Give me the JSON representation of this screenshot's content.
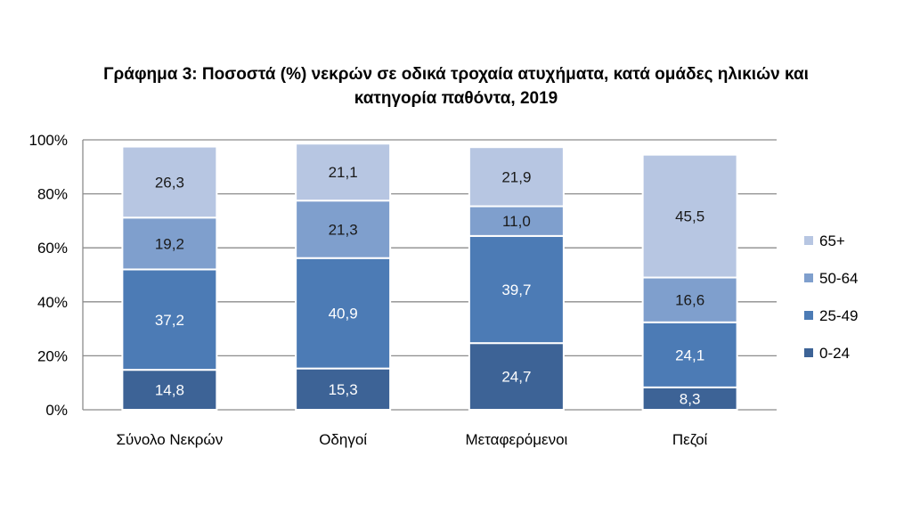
{
  "chart_data": {
    "type": "bar",
    "stacked": true,
    "title_line1": "Γράφημα 3: Ποσοστά (%) νεκρών σε οδικά τροχαία ατυχήματα, κατά ομάδες ηλικιών και",
    "title_line2": "κατηγορία παθόντα, 2019",
    "xlabel": "",
    "ylabel": "",
    "ylim": [
      0,
      100
    ],
    "y_ticks": [
      "0%",
      "20%",
      "40%",
      "60%",
      "80%",
      "100%"
    ],
    "grid": true,
    "legend_position": "right",
    "categories": [
      "Σύνολο Νεκρών",
      "Οδηγοί",
      "Μεταφερόμενοι",
      "Πεζοί"
    ],
    "series": [
      {
        "name": "0-24",
        "values": [
          14.8,
          15.3,
          24.7,
          8.3
        ],
        "labels": [
          "14,8",
          "15,3",
          "24,7",
          "8,3"
        ],
        "color": "#3d6396"
      },
      {
        "name": "25-49",
        "values": [
          37.2,
          40.9,
          39.7,
          24.1
        ],
        "labels": [
          "37,2",
          "40,9",
          "39,7",
          "24,1"
        ],
        "color": "#4c7bb5"
      },
      {
        "name": "50-64",
        "values": [
          19.2,
          21.3,
          11.0,
          16.6
        ],
        "labels": [
          "19,2",
          "21,3",
          "11,0",
          "16,6"
        ],
        "color": "#7f9fcd"
      },
      {
        "name": "65+",
        "values": [
          26.3,
          21.1,
          21.9,
          45.5
        ],
        "labels": [
          "26,3",
          "21,1",
          "21,9",
          "45,5"
        ],
        "color": "#b7c6e2"
      }
    ]
  }
}
